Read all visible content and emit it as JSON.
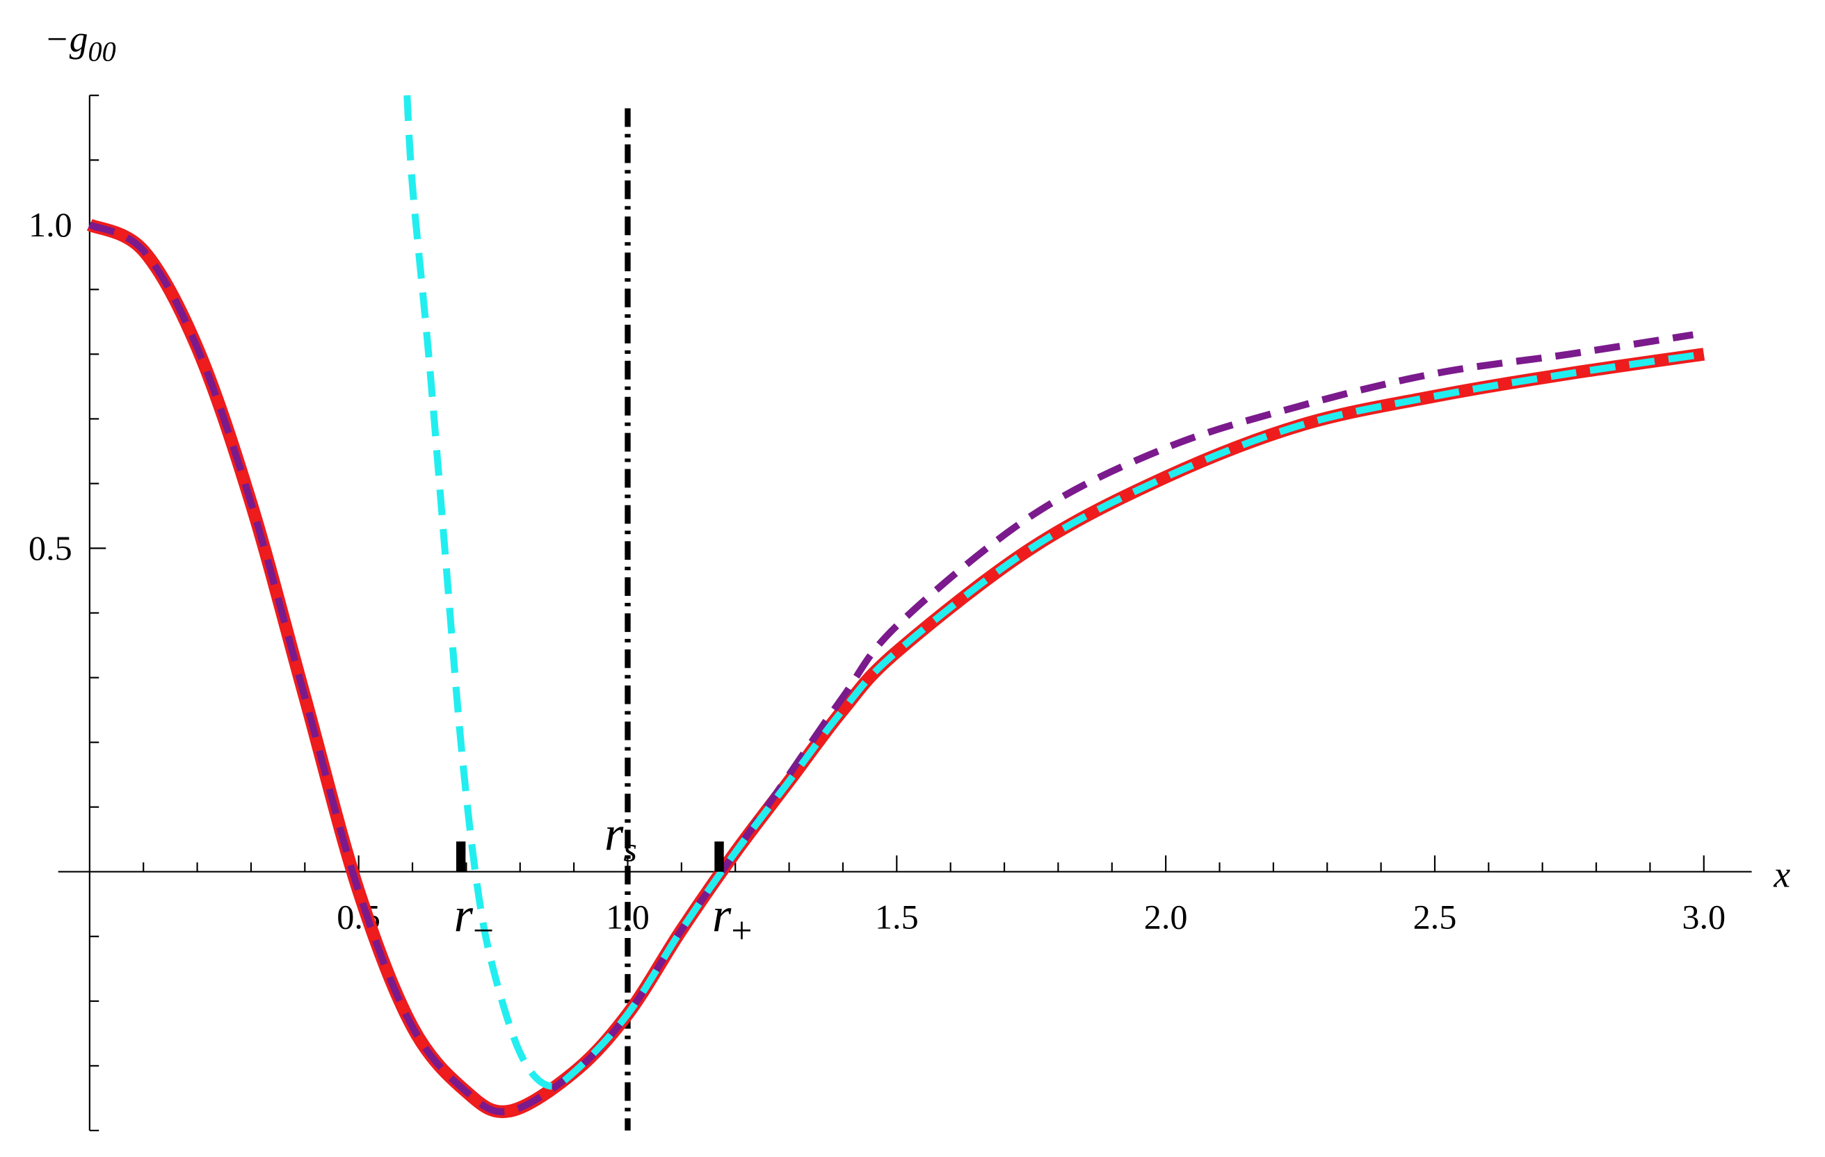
{
  "chart_data": {
    "type": "line",
    "xlabel": "x",
    "ylabel": {
      "main": "−g",
      "sub": "00"
    },
    "xlim": [
      0,
      3.05
    ],
    "ylim": [
      -0.4,
      1.2
    ],
    "xticks": [
      0.5,
      {
        "value": 1,
        "label": "1.0"
      },
      1.5,
      {
        "value": 2,
        "label": "2.0"
      },
      2.5,
      {
        "value": 3,
        "label": "3.0"
      }
    ],
    "xminorticks": [
      0.1,
      0.2,
      0.3,
      0.4,
      0.6,
      0.7,
      0.8,
      0.9,
      1.1,
      1.2,
      1.3,
      1.4,
      1.6,
      1.7,
      1.8,
      1.9,
      2.1,
      2.2,
      2.3,
      2.4,
      2.6,
      2.7,
      2.8,
      2.9
    ],
    "yticks": [
      0.5,
      {
        "value": 1,
        "label": "1.0"
      }
    ],
    "yminorticks": [
      -0.4,
      -0.3,
      -0.2,
      -0.1,
      0.1,
      0.2,
      0.3,
      0.4,
      0.6,
      0.7,
      0.8,
      0.9,
      1.1,
      1.2
    ],
    "series": [
      {
        "color": "#ee1c1c",
        "dashed": false,
        "x": [
          0,
          0.1,
          0.2,
          0.3,
          0.4,
          0.5,
          0.6,
          0.7,
          0.78,
          0.9,
          1.0,
          1.1,
          1.2,
          1.3,
          1.4,
          1.5,
          1.75,
          2.0,
          2.25,
          2.5,
          2.75,
          3.0
        ],
        "values": [
          1.0,
          0.96,
          0.81,
          0.57,
          0.27,
          -0.03,
          -0.24,
          -0.34,
          -0.37,
          -0.31,
          -0.22,
          -0.09,
          0.03,
          0.14,
          0.25,
          0.34,
          0.5,
          0.61,
          0.69,
          0.735,
          0.77,
          0.8
        ]
      },
      {
        "color": "#7b1a8c",
        "dashed": true,
        "x": [
          0,
          0.1,
          0.2,
          0.3,
          0.4,
          0.5,
          0.6,
          0.7,
          0.78,
          0.9,
          1.0,
          1.1,
          1.2,
          1.3,
          1.4,
          1.5,
          1.75,
          2.0,
          2.25,
          2.5,
          2.75,
          2.98
        ],
        "values": [
          1.0,
          0.96,
          0.81,
          0.57,
          0.27,
          -0.03,
          -0.24,
          -0.34,
          -0.37,
          -0.31,
          -0.22,
          -0.09,
          0.03,
          0.15,
          0.27,
          0.38,
          0.55,
          0.655,
          0.72,
          0.77,
          0.8,
          0.83
        ]
      },
      {
        "color": "#22eef0",
        "dashed": true,
        "x": [
          0.59,
          0.6,
          0.63,
          0.66,
          0.69,
          0.72,
          0.75,
          0.8,
          0.85,
          0.9,
          1.0,
          1.1,
          1.2,
          1.3,
          1.4,
          1.5,
          1.75,
          2.0,
          2.25,
          2.5,
          2.75,
          3.0
        ],
        "values": [
          1.2,
          1.06,
          0.8,
          0.5,
          0.2,
          -0.02,
          -0.15,
          -0.28,
          -0.33,
          -0.31,
          -0.22,
          -0.09,
          0.03,
          0.14,
          0.25,
          0.34,
          0.5,
          0.61,
          0.69,
          0.735,
          0.77,
          0.8
        ]
      }
    ],
    "vline": {
      "x": 1.0,
      "top": 1.18,
      "label": "r",
      "sub": "s"
    },
    "markers": [
      {
        "x": 0.69,
        "label": "r",
        "sub": "−"
      },
      {
        "x": 1.17,
        "label": "r",
        "sub": "+"
      }
    ]
  }
}
